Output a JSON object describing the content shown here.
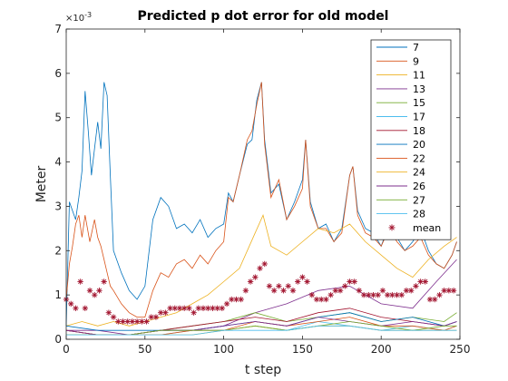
{
  "chart_data": {
    "type": "line",
    "title": "Predicted p dot error for old model",
    "xlabel": "t step",
    "ylabel": "Meter",
    "xlim": [
      0,
      250
    ],
    "ylim": [
      0,
      0.007
    ],
    "y_exponent_label": "×10",
    "y_exponent": "-3",
    "x_ticks": [
      "0",
      "50",
      "100",
      "150",
      "200",
      "250"
    ],
    "y_ticks": [
      "0",
      "1",
      "2",
      "3",
      "4",
      "5",
      "6",
      "7"
    ],
    "legend_location": "top-right",
    "grid": false,
    "colors": [
      "#0072bd",
      "#d95319",
      "#edb120",
      "#7e2f8e",
      "#77ac30",
      "#4dbeee",
      "#a2142f",
      "#0072bd",
      "#d95319",
      "#edb120",
      "#7e2f8e",
      "#77ac30",
      "#4dbeee"
    ],
    "mean_color": "#a2142f",
    "series": [
      {
        "name": "7",
        "x": [
          0,
          2,
          4,
          6,
          8,
          10,
          12,
          14,
          16,
          18,
          20,
          22,
          24,
          26,
          28,
          30,
          35,
          40,
          45,
          50,
          55,
          60,
          65,
          70,
          75,
          80,
          85,
          90,
          95,
          100,
          103,
          106,
          110,
          115,
          118,
          121,
          124,
          126,
          130,
          135,
          140,
          145,
          150,
          152,
          155,
          160,
          165,
          170,
          175,
          180,
          182,
          185,
          190,
          195,
          200,
          205,
          210,
          215,
          220,
          225,
          230,
          235,
          240,
          245,
          248
        ],
        "y": [
          0.0003,
          0.0031,
          0.0029,
          0.0027,
          0.0032,
          0.0038,
          0.0056,
          0.0047,
          0.0037,
          0.0043,
          0.0049,
          0.0043,
          0.0058,
          0.0055,
          0.0037,
          0.002,
          0.0015,
          0.0011,
          0.0009,
          0.0012,
          0.0027,
          0.0032,
          0.003,
          0.0025,
          0.0026,
          0.0024,
          0.0027,
          0.0023,
          0.0025,
          0.0026,
          0.0033,
          0.0031,
          0.0037,
          0.0044,
          0.0045,
          0.0054,
          0.0058,
          0.0045,
          0.0033,
          0.0035,
          0.0027,
          0.0031,
          0.0036,
          0.0045,
          0.0031,
          0.0025,
          0.0026,
          0.0022,
          0.0025,
          0.0037,
          0.0039,
          0.0029,
          0.0025,
          0.0024,
          0.0021,
          0.0026,
          0.0023,
          0.002,
          0.0022,
          0.0025,
          0.002,
          0.0017,
          0.0016,
          0.0019,
          0.0022
        ]
      },
      {
        "name": "9",
        "x": [
          0,
          2,
          4,
          6,
          8,
          10,
          12,
          15,
          18,
          20,
          22,
          24,
          26,
          28,
          30,
          35,
          40,
          45,
          50,
          55,
          60,
          65,
          70,
          75,
          80,
          85,
          90,
          95,
          100,
          103,
          106,
          110,
          115,
          118,
          121,
          124,
          126,
          130,
          135,
          140,
          145,
          150,
          152,
          155,
          160,
          165,
          170,
          175,
          180,
          182,
          185,
          190,
          195,
          200,
          205,
          210,
          215,
          220,
          225,
          230,
          235,
          240,
          245,
          248
        ],
        "y": [
          0.0009,
          0.0017,
          0.0021,
          0.0026,
          0.0028,
          0.0023,
          0.0028,
          0.0022,
          0.0027,
          0.0023,
          0.0021,
          0.0018,
          0.0015,
          0.0012,
          0.0011,
          0.0008,
          0.0006,
          0.0005,
          0.0005,
          0.0011,
          0.0015,
          0.0014,
          0.0017,
          0.0018,
          0.0016,
          0.0019,
          0.0017,
          0.002,
          0.0022,
          0.0032,
          0.0031,
          0.0037,
          0.0045,
          0.0047,
          0.0053,
          0.0058,
          0.0044,
          0.0032,
          0.0036,
          0.0027,
          0.003,
          0.0034,
          0.0045,
          0.003,
          0.0025,
          0.0025,
          0.0022,
          0.0024,
          0.0037,
          0.0039,
          0.0028,
          0.0024,
          0.0023,
          0.0021,
          0.0025,
          0.0022,
          0.002,
          0.0021,
          0.0023,
          0.0019,
          0.0017,
          0.0016,
          0.0019,
          0.0022
        ]
      },
      {
        "name": "11",
        "x": [
          0,
          10,
          20,
          30,
          40,
          50,
          60,
          70,
          80,
          90,
          100,
          110,
          120,
          125,
          130,
          140,
          150,
          160,
          170,
          180,
          190,
          200,
          210,
          220,
          230,
          240,
          248
        ],
        "y": [
          0.0003,
          0.0004,
          0.0003,
          0.0004,
          0.0003,
          0.0004,
          0.0005,
          0.0006,
          0.0008,
          0.001,
          0.0013,
          0.0016,
          0.0024,
          0.0028,
          0.0021,
          0.0019,
          0.0022,
          0.0025,
          0.0024,
          0.0026,
          0.0022,
          0.0019,
          0.0016,
          0.0014,
          0.0018,
          0.0021,
          0.0023
        ]
      },
      {
        "name": "13",
        "x": [
          0,
          20,
          40,
          60,
          80,
          100,
          120,
          140,
          160,
          180,
          200,
          220,
          235,
          248
        ],
        "y": [
          0.0002,
          0.0002,
          0.0001,
          0.0002,
          0.0002,
          0.0003,
          0.0006,
          0.0008,
          0.0011,
          0.0012,
          0.0008,
          0.0007,
          0.0013,
          0.0018
        ]
      },
      {
        "name": "15",
        "x": [
          0,
          20,
          40,
          60,
          80,
          100,
          120,
          140,
          160,
          180,
          200,
          220,
          240,
          248
        ],
        "y": [
          0.0002,
          0.0001,
          0.0001,
          0.0002,
          0.0003,
          0.0004,
          0.0006,
          0.0004,
          0.0005,
          0.0006,
          0.0004,
          0.0005,
          0.0004,
          0.0006
        ]
      },
      {
        "name": "17",
        "x": [
          0,
          20,
          40,
          60,
          80,
          100,
          120,
          140,
          160,
          180,
          200,
          220,
          240,
          248
        ],
        "y": [
          0.0001,
          0.0001,
          0.0001,
          0.0001,
          0.0002,
          0.0002,
          0.0003,
          0.0002,
          0.0004,
          0.0003,
          0.0002,
          0.0003,
          0.0002,
          0.0003
        ]
      },
      {
        "name": "18",
        "x": [
          0,
          20,
          40,
          60,
          80,
          100,
          120,
          140,
          160,
          180,
          200,
          220,
          240,
          248
        ],
        "y": [
          0.0002,
          0.0001,
          0.0001,
          0.0002,
          0.0003,
          0.0004,
          0.0005,
          0.0004,
          0.0006,
          0.0007,
          0.0005,
          0.0004,
          0.0003,
          0.0004
        ]
      },
      {
        "name": "20",
        "x": [
          0,
          20,
          40,
          60,
          80,
          100,
          120,
          140,
          160,
          180,
          200,
          220,
          240,
          248
        ],
        "y": [
          0.0003,
          0.0002,
          0.0002,
          0.0002,
          0.0002,
          0.0003,
          0.0004,
          0.0003,
          0.0005,
          0.0006,
          0.0004,
          0.0005,
          0.0003,
          0.0004
        ]
      },
      {
        "name": "22",
        "x": [
          0,
          20,
          40,
          60,
          80,
          100,
          120,
          140,
          160,
          180,
          200,
          220,
          240,
          248
        ],
        "y": [
          0.0002,
          0.0001,
          0.0001,
          0.0001,
          0.0002,
          0.0002,
          0.0004,
          0.0003,
          0.0004,
          0.0005,
          0.0003,
          0.0003,
          0.0002,
          0.0003
        ]
      },
      {
        "name": "24",
        "x": [
          0,
          20,
          40,
          60,
          80,
          100,
          120,
          140,
          160,
          180,
          200,
          220,
          240,
          248
        ],
        "y": [
          0.0001,
          0.0001,
          0.0001,
          0.0001,
          0.0001,
          0.0002,
          0.0003,
          0.0002,
          0.0003,
          0.0003,
          0.0002,
          0.0002,
          0.0002,
          0.0002
        ]
      },
      {
        "name": "26",
        "x": [
          0,
          20,
          40,
          60,
          80,
          100,
          120,
          140,
          160,
          180,
          200,
          220,
          240,
          248
        ],
        "y": [
          0.0002,
          0.0001,
          0.0001,
          0.0002,
          0.0002,
          0.0003,
          0.0004,
          0.0003,
          0.0005,
          0.0004,
          0.0003,
          0.0004,
          0.0003,
          0.0004
        ]
      },
      {
        "name": "27",
        "x": [
          0,
          20,
          40,
          60,
          80,
          100,
          120,
          140,
          160,
          180,
          200,
          220,
          240,
          248
        ],
        "y": [
          0.0001,
          0.0001,
          0.0001,
          0.0002,
          0.0002,
          0.0002,
          0.0003,
          0.0002,
          0.0003,
          0.0004,
          0.0003,
          0.0002,
          0.0003,
          0.0003
        ]
      },
      {
        "name": "28",
        "x": [
          0,
          20,
          40,
          60,
          80,
          100,
          120,
          140,
          160,
          180,
          200,
          220,
          240,
          248
        ],
        "y": [
          0.0001,
          0.0001,
          0.0001,
          0.0001,
          0.0001,
          0.0002,
          0.0002,
          0.0002,
          0.0003,
          0.0003,
          0.0002,
          0.0002,
          0.0002,
          0.0002
        ]
      },
      {
        "name": "mean",
        "marker": "*",
        "x": [
          0,
          3,
          6,
          9,
          12,
          15,
          18,
          21,
          24,
          27,
          30,
          33,
          36,
          39,
          42,
          45,
          48,
          51,
          54,
          57,
          60,
          63,
          66,
          69,
          72,
          75,
          78,
          81,
          84,
          87,
          90,
          93,
          96,
          99,
          102,
          105,
          108,
          111,
          114,
          117,
          120,
          123,
          126,
          129,
          132,
          135,
          138,
          141,
          144,
          147,
          150,
          153,
          156,
          159,
          162,
          165,
          168,
          171,
          174,
          177,
          180,
          183,
          186,
          189,
          192,
          195,
          198,
          201,
          204,
          207,
          210,
          213,
          216,
          219,
          222,
          225,
          228,
          231,
          234,
          237,
          240,
          243,
          246
        ],
        "y": [
          0.0009,
          0.0008,
          0.0007,
          0.0013,
          0.0007,
          0.0011,
          0.001,
          0.0011,
          0.0013,
          0.0006,
          0.0005,
          0.0004,
          0.0004,
          0.0004,
          0.0004,
          0.0004,
          0.0004,
          0.0004,
          0.0005,
          0.0005,
          0.0006,
          0.0006,
          0.0007,
          0.0007,
          0.0007,
          0.0007,
          0.0007,
          0.0006,
          0.0007,
          0.0007,
          0.0007,
          0.0007,
          0.0007,
          0.0007,
          0.0008,
          0.0009,
          0.0009,
          0.0009,
          0.0011,
          0.0013,
          0.0014,
          0.0016,
          0.0017,
          0.0012,
          0.0011,
          0.0012,
          0.0011,
          0.0012,
          0.0011,
          0.0013,
          0.0014,
          0.0013,
          0.001,
          0.0009,
          0.0009,
          0.0009,
          0.001,
          0.0011,
          0.0011,
          0.0012,
          0.0013,
          0.0013,
          0.0011,
          0.001,
          0.001,
          0.001,
          0.001,
          0.0011,
          0.001,
          0.001,
          0.001,
          0.001,
          0.0011,
          0.0011,
          0.0012,
          0.0013,
          0.0013,
          0.0009,
          0.0009,
          0.001,
          0.0011,
          0.0011,
          0.0011
        ]
      }
    ]
  }
}
